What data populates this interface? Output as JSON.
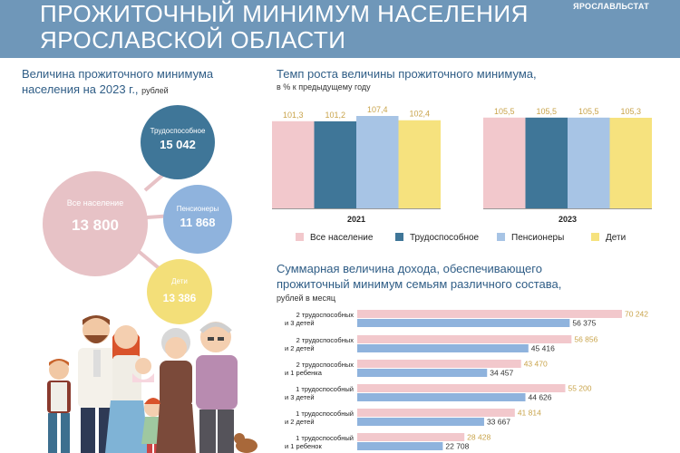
{
  "header": {
    "title_line1": "ПРОЖИТОЧНЫЙ МИНИМУМ НАСЕЛЕНИЯ",
    "title_line2": "ЯРОСЛАВСКОЙ ОБЛАСТИ",
    "brand": "ЯРОСЛАВЛЬСТАТ"
  },
  "left_section": {
    "title_line1": "Величина прожиточного минимума",
    "title_line2": "населения на 2023 г.,",
    "unit": "рублей",
    "bubbles": [
      {
        "label": "Трудоспособное",
        "value": "15 042",
        "color": "#3f7698"
      },
      {
        "label": "Все население",
        "value": "13 800",
        "color": "#e7c2c6"
      },
      {
        "label": "Пенсионеры",
        "value": "11 868",
        "color": "#8fb3dd"
      },
      {
        "label": "Дети",
        "value": "13 386",
        "color": "#f3df79"
      }
    ]
  },
  "chart_data": [
    {
      "type": "bar",
      "title": "Темп роста величины прожиточного минимума,",
      "subtitle": "в % к предыдущему  году",
      "categories": [
        "2021",
        "2023"
      ],
      "series": [
        {
          "name": "Все население",
          "color": "#f2c8cc",
          "values": [
            101.3,
            105.5
          ],
          "labels": [
            "101,3",
            "105,5"
          ]
        },
        {
          "name": "Трудоспособное",
          "color": "#3f7698",
          "values": [
            101.2,
            105.5
          ],
          "labels": [
            "101,2",
            "105,5"
          ]
        },
        {
          "name": "Пенсионеры",
          "color": "#a7c4e5",
          "values": [
            107.4,
            105.5
          ],
          "labels": [
            "107,4",
            "105,5"
          ]
        },
        {
          "name": "Дети",
          "color": "#f6e27e",
          "values": [
            102.4,
            105.3
          ],
          "labels": [
            "102,4",
            "105,3"
          ]
        }
      ],
      "legend_position": "bottom",
      "ylim": [
        0,
        110
      ]
    },
    {
      "type": "bar",
      "title": "Суммарная величина дохода, обеспечивающего",
      "title_line2": "прожиточный минимум семьям различного состава,",
      "subtitle": "рублей  в месяц",
      "orientation": "horizontal",
      "categories": [
        [
          "2 трудоспособных",
          "и 3 детей"
        ],
        [
          "2 трудоспособных",
          "и 2 детей"
        ],
        [
          "2 трудоспособных",
          "и 1 ребенка"
        ],
        [
          "1 трудоспособный",
          "и 3 детей"
        ],
        [
          "1 трудоспособный",
          "и 2 детей"
        ],
        [
          "1 трудоспособный",
          "и 1 ребенок"
        ]
      ],
      "series": [
        {
          "color": "#f2c8cc",
          "values": [
            70242,
            56856,
            43470,
            55200,
            41814,
            28428
          ],
          "labels": [
            "70 242",
            "56 856",
            "43 470",
            "55 200",
            "41 814",
            "28 428"
          ]
        },
        {
          "color": "#8fb3dd",
          "values": [
            56375,
            45416,
            34457,
            44626,
            33667,
            22708
          ],
          "labels": [
            "56 375",
            "45 416",
            "34 457",
            "44 626",
            "33 667",
            "22 708"
          ]
        }
      ],
      "xlim": [
        0,
        70242
      ]
    }
  ]
}
